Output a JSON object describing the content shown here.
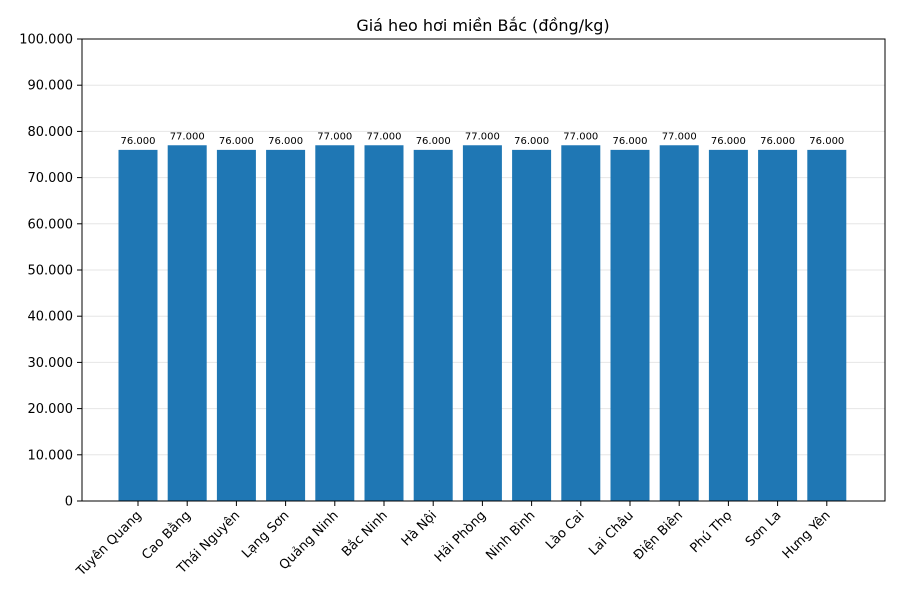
{
  "chart_data": {
    "type": "bar",
    "title": "Giá heo hơi miền Bắc (đồng/kg)",
    "xlabel": "",
    "ylabel": "",
    "ylim": [
      0,
      100000
    ],
    "yticks": [
      0,
      10000,
      20000,
      30000,
      40000,
      50000,
      60000,
      70000,
      80000,
      90000,
      100000
    ],
    "ytick_labels": [
      "0",
      "10.000",
      "20.000",
      "30.000",
      "40.000",
      "50.000",
      "60.000",
      "70.000",
      "80.000",
      "90.000",
      "100.000"
    ],
    "grid": true,
    "bar_color": "#1f77b4",
    "categories": [
      "Tuyên Quang",
      "Cao Bằng",
      "Thái Nguyên",
      "Lạng Sơn",
      "Quảng Ninh",
      "Bắc Ninh",
      "Hà Nội",
      "Hải Phòng",
      "Ninh Bình",
      "Lào Cai",
      "Lai Châu",
      "Điện Biên",
      "Phú Thọ",
      "Sơn La",
      "Hưng Yên"
    ],
    "values": [
      76000,
      77000,
      76000,
      76000,
      77000,
      77000,
      76000,
      77000,
      76000,
      77000,
      76000,
      77000,
      76000,
      76000,
      76000
    ],
    "data_labels": [
      "76.000",
      "77.000",
      "76.000",
      "76.000",
      "77.000",
      "77.000",
      "76.000",
      "77.000",
      "76.000",
      "77.000",
      "76.000",
      "77.000",
      "76.000",
      "76.000",
      "76.000"
    ]
  }
}
